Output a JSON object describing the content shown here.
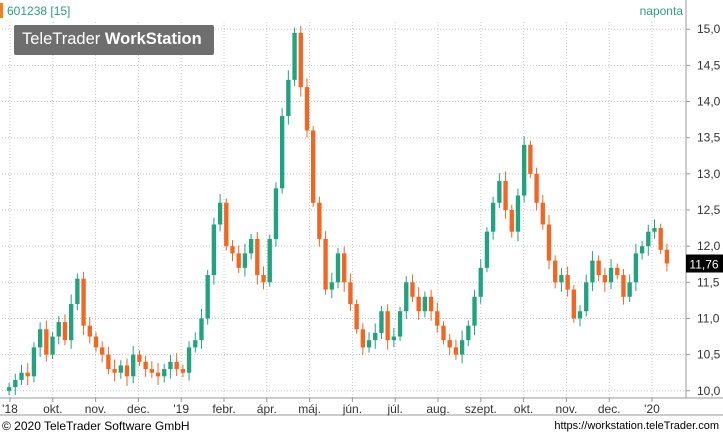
{
  "header": {
    "symbol": "601238 [15]",
    "interval": "naponta"
  },
  "watermark": {
    "brand_light": "TeleTrader ",
    "brand_bold": "WorkStation"
  },
  "footer": {
    "copyright": "© 2020 TeleTrader Software GmbH",
    "url": "https://workstation.teleTrader.com"
  },
  "colors": {
    "up": "#22a380",
    "down": "#f26522",
    "grid": "#c8c8c8",
    "last_price_bg": "#000000"
  },
  "chart_data": {
    "type": "candlestick",
    "ylim": [
      9.9,
      15.1
    ],
    "y_ticks": [
      "10,0",
      "10,5",
      "11,0",
      "11,5",
      "12,0",
      "12,5",
      "13,0",
      "13,5",
      "14,0",
      "14,5",
      "15,0"
    ],
    "x_ticks": [
      "'18",
      "okt.",
      "nov.",
      "dec.",
      "'19",
      "febr.",
      "ápr.",
      "máj.",
      "jún.",
      "júl.",
      "aug.",
      "szept.",
      "okt.",
      "nov.",
      "dec.",
      "'20"
    ],
    "last_price": "11,76",
    "grid": true,
    "series": [
      {
        "name": "close",
        "values": [
          10.05,
          10.15,
          10.25,
          10.2,
          10.6,
          10.85,
          10.5,
          10.75,
          10.95,
          10.7,
          11.2,
          11.55,
          10.9,
          10.75,
          10.6,
          10.5,
          10.3,
          10.25,
          10.35,
          10.2,
          10.5,
          10.4,
          10.3,
          10.25,
          10.2,
          10.3,
          10.4,
          10.3,
          10.25,
          10.6,
          10.7,
          11.0,
          11.6,
          12.3,
          12.6,
          12.0,
          11.9,
          11.7,
          11.9,
          12.1,
          11.6,
          11.5,
          12.1,
          12.8,
          13.8,
          14.3,
          14.95,
          14.2,
          13.6,
          12.6,
          12.1,
          11.4,
          11.5,
          11.9,
          11.5,
          11.2,
          10.85,
          10.6,
          10.7,
          10.8,
          11.1,
          10.7,
          10.75,
          11.1,
          11.5,
          11.3,
          11.1,
          11.3,
          11.1,
          10.9,
          10.7,
          10.6,
          10.5,
          10.7,
          10.9,
          11.3,
          11.7,
          12.2,
          12.6,
          12.9,
          12.5,
          12.2,
          12.7,
          13.4,
          13.0,
          12.6,
          12.3,
          11.8,
          11.5,
          11.6,
          11.4,
          11.0,
          11.1,
          11.5,
          11.8,
          11.6,
          11.5,
          11.7,
          11.6,
          11.3,
          11.5,
          11.9,
          12.0,
          12.2,
          12.25,
          11.95,
          11.76
        ]
      }
    ]
  }
}
